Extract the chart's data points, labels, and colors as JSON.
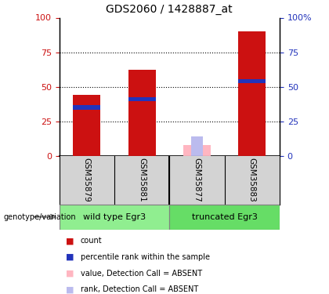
{
  "title": "GDS2060 / 1428887_at",
  "samples": [
    "GSM35879",
    "GSM35881",
    "GSM35877",
    "GSM35883"
  ],
  "absent_flags": [
    false,
    false,
    true,
    false
  ],
  "red_bar_values": [
    44,
    62,
    8,
    90
  ],
  "blue_bar_values": [
    35,
    41,
    0,
    54
  ],
  "pink_bar_values": [
    0,
    0,
    8,
    0
  ],
  "lightblue_bar_values": [
    0,
    0,
    14,
    0
  ],
  "bar_color_red": "#CC1111",
  "bar_color_blue": "#2233BB",
  "bar_color_pink": "#FFB6C1",
  "bar_color_lightblue": "#BBBBEE",
  "ylim": [
    0,
    100
  ],
  "yticks": [
    0,
    25,
    50,
    75,
    100
  ],
  "group_labels": [
    "wild type Egr3",
    "truncated Egr3"
  ],
  "group_colors": [
    "#90EE90",
    "#66DD66"
  ],
  "left_axis_color": "#CC1111",
  "right_axis_color": "#2233BB",
  "bar_width": 0.5,
  "sample_bg": "#D3D3D3",
  "legend_items": [
    {
      "label": "count",
      "color": "#CC1111"
    },
    {
      "label": "percentile rank within the sample",
      "color": "#2233BB"
    },
    {
      "label": "value, Detection Call = ABSENT",
      "color": "#FFB6C1"
    },
    {
      "label": "rank, Detection Call = ABSENT",
      "color": "#BBBBEE"
    }
  ]
}
